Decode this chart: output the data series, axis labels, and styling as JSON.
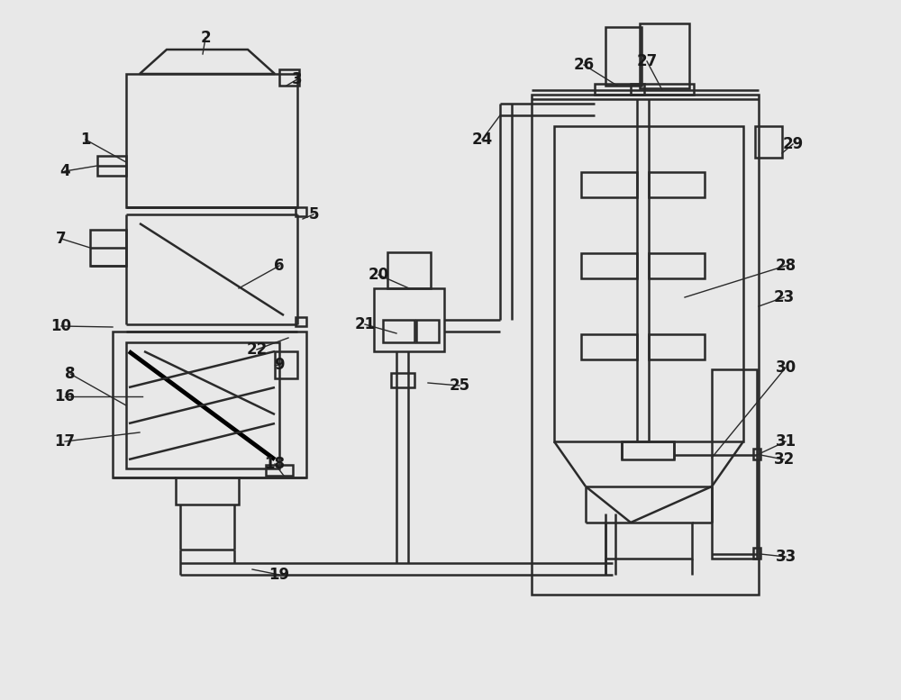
{
  "bg_color": "#e8e8e8",
  "line_color": "#2a2a2a",
  "lw": 1.8,
  "fig_width": 10.0,
  "fig_height": 7.77,
  "label_fs": 12
}
